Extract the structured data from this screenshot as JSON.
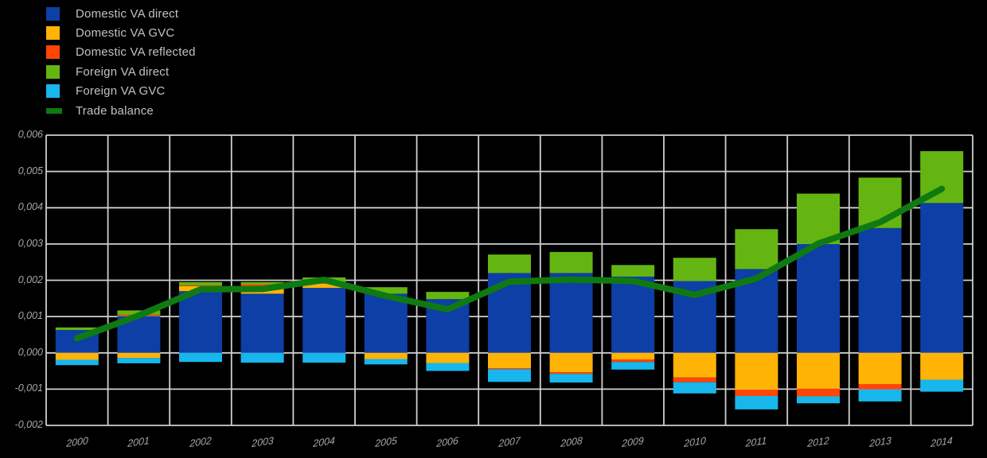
{
  "legend": {
    "items": [
      {
        "label": "Domestic VA direct",
        "color": "#0d3fa6",
        "swatch": "square"
      },
      {
        "label": "Domestic VA GVC",
        "color": "#ffb305",
        "swatch": "square"
      },
      {
        "label": "Domestic VA reflected",
        "color": "#ff4506",
        "swatch": "square"
      },
      {
        "label": "Foreign VA direct",
        "color": "#65b512",
        "swatch": "square"
      },
      {
        "label": "Foreign VA GVC",
        "color": "#17b6ec",
        "swatch": "square"
      },
      {
        "label": "Trade balance",
        "color": "#0f7a11",
        "swatch": "line"
      }
    ]
  },
  "chart_data": {
    "type": "bar",
    "subtype": "stacked-bars-with-negative-values-plus-line",
    "title": "",
    "xlabel": "",
    "ylabel": "",
    "categories": [
      "2000",
      "2001",
      "2002",
      "2003",
      "2004",
      "2005",
      "2006",
      "2007",
      "2008",
      "2009",
      "2010",
      "2011",
      "2012",
      "2013",
      "2014"
    ],
    "series": [
      {
        "name": "Domestic VA direct",
        "color": "#0d3fa6",
        "values": [
          0.00063,
          0.00101,
          0.0017,
          0.00163,
          0.00179,
          0.00163,
          0.00148,
          0.0022,
          0.0022,
          0.0021,
          0.00198,
          0.00231,
          0.003,
          0.00344,
          0.00413
        ]
      },
      {
        "name": "Domestic VA GVC",
        "color": "#ffb305",
        "values": [
          -0.00019,
          -0.00014,
          0.00014,
          0.00018,
          0.00012,
          -0.00017,
          -0.00028,
          -0.00042,
          -0.00053,
          -0.00018,
          -0.00068,
          -0.00102,
          -0.00099,
          -0.00086,
          -0.00074
        ]
      },
      {
        "name": "Domestic VA reflected",
        "color": "#ff4506",
        "values": [
          0.0,
          4e-05,
          2e-05,
          8e-05,
          5e-05,
          0.0,
          0.0,
          -3e-05,
          -5e-05,
          -7e-05,
          -0.00013,
          -0.00017,
          -0.00021,
          -0.00015,
          0.0
        ]
      },
      {
        "name": "Foreign VA direct",
        "color": "#65b512",
        "values": [
          7e-05,
          0.00012,
          9e-05,
          6e-05,
          0.00012,
          0.00018,
          0.0002,
          0.00051,
          0.00058,
          0.00032,
          0.00064,
          0.0011,
          0.00139,
          0.00139,
          0.00143
        ]
      },
      {
        "name": "Foreign VA GVC",
        "color": "#17b6ec",
        "values": [
          -0.00015,
          -0.00015,
          -0.00025,
          -0.00027,
          -0.00027,
          -0.00015,
          -0.00022,
          -0.00035,
          -0.00024,
          -0.00021,
          -0.00031,
          -0.00037,
          -0.00019,
          -0.00033,
          -0.00033
        ]
      }
    ],
    "line_series": {
      "name": "Trade balance",
      "color": "#0f7a11",
      "values": [
        0.0004,
        0.00103,
        0.00175,
        0.00176,
        0.00201,
        0.00157,
        0.0012,
        0.00196,
        0.00202,
        0.00198,
        0.0016,
        0.00205,
        0.00301,
        0.0036,
        0.00452
      ]
    },
    "y_axis": {
      "min": -0.002,
      "max": 0.006,
      "step": 0.001,
      "ticks": [
        0.006,
        0.005,
        0.004,
        0.003,
        0.002,
        0.001,
        0.0,
        -0.001,
        -0.002
      ],
      "tick_labels": [
        "0,006",
        "0,005",
        "0,004",
        "0,003",
        "0,002",
        "0,001",
        "0,000",
        "-0,001",
        "-0,002"
      ]
    },
    "grid": true,
    "gridline_color": "#cfcfcf",
    "background": "#000000",
    "legend_position": "top-left"
  }
}
